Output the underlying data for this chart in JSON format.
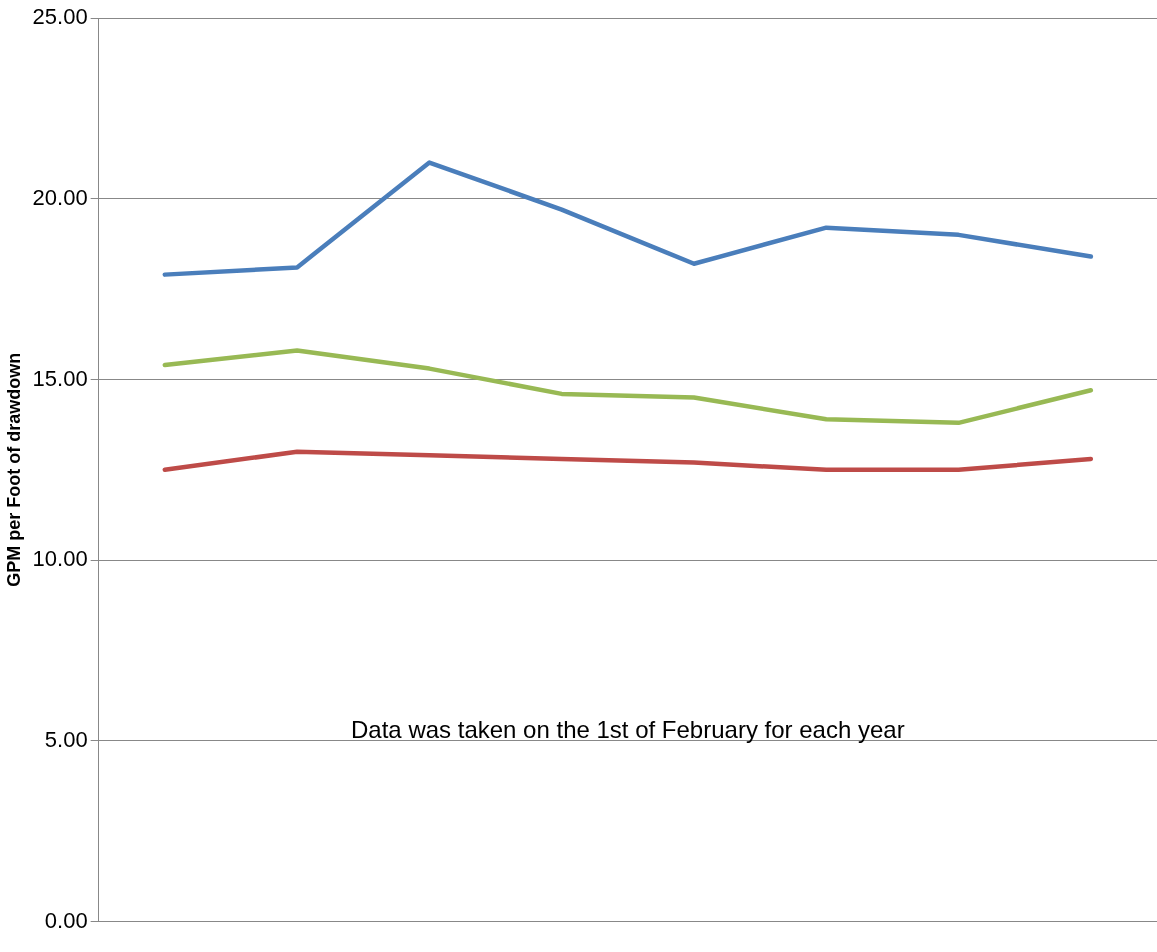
{
  "chart_data": {
    "type": "line",
    "ylabel": "GPM per Foot of drawdown",
    "categories": [
      null,
      null,
      null,
      null,
      null,
      null,
      null,
      null
    ],
    "series": [
      {
        "color": "#4a7ebb",
        "values": [
          17.9,
          18.1,
          21.0,
          19.7,
          18.2,
          19.2,
          19.0,
          18.4
        ]
      },
      {
        "color": "#98b954",
        "values": [
          15.4,
          15.8,
          15.3,
          14.6,
          14.5,
          13.9,
          13.8,
          14.7
        ]
      },
      {
        "color": "#be4b48",
        "values": [
          12.5,
          13.0,
          12.9,
          12.8,
          12.7,
          12.5,
          12.5,
          12.8
        ]
      }
    ],
    "ylim": [
      0,
      25
    ],
    "yticks": [
      {
        "value": 0,
        "label": "0.00"
      },
      {
        "value": 5,
        "label": "5.00"
      },
      {
        "value": 10,
        "label": "10.00"
      },
      {
        "value": 15,
        "label": "15.00"
      },
      {
        "value": 20,
        "label": "20.00"
      },
      {
        "value": 25,
        "label": "25.00"
      }
    ],
    "grid": "y",
    "legend": false,
    "marker": "none",
    "line_style": "solid",
    "annotations": [
      "Data was taken on the 1st of February for each year"
    ]
  }
}
